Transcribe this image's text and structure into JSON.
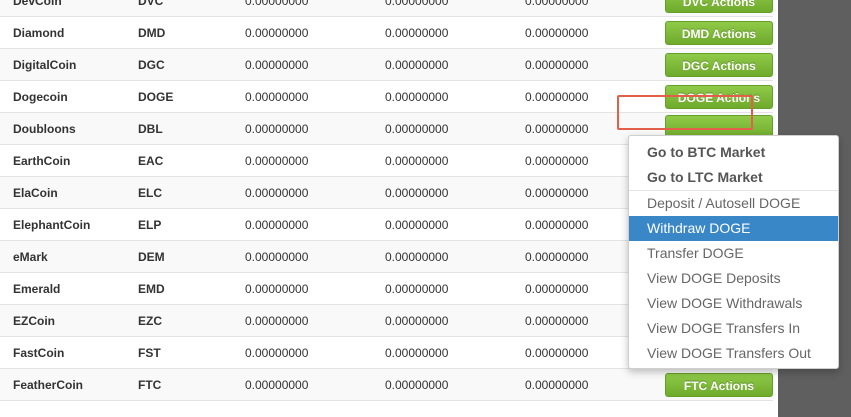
{
  "rows": [
    {
      "name": "DevCoin",
      "code": "DVC",
      "v1": "0.00000000",
      "v2": "0.00000000",
      "v3": "0.00000000",
      "action": "DVC Actions"
    },
    {
      "name": "Diamond",
      "code": "DMD",
      "v1": "0.00000000",
      "v2": "0.00000000",
      "v3": "0.00000000",
      "action": "DMD Actions"
    },
    {
      "name": "DigitalCoin",
      "code": "DGC",
      "v1": "0.00000000",
      "v2": "0.00000000",
      "v3": "0.00000000",
      "action": "DGC Actions"
    },
    {
      "name": "Dogecoin",
      "code": "DOGE",
      "v1": "0.00000000",
      "v2": "0.00000000",
      "v3": "0.00000000",
      "action": "DOGE Actions"
    },
    {
      "name": "Doubloons",
      "code": "DBL",
      "v1": "0.00000000",
      "v2": "0.00000000",
      "v3": "0.00000000",
      "action": ""
    },
    {
      "name": "EarthCoin",
      "code": "EAC",
      "v1": "0.00000000",
      "v2": "0.00000000",
      "v3": "0.00000000",
      "action": ""
    },
    {
      "name": "ElaCoin",
      "code": "ELC",
      "v1": "0.00000000",
      "v2": "0.00000000",
      "v3": "0.00000000",
      "action": ""
    },
    {
      "name": "ElephantCoin",
      "code": "ELP",
      "v1": "0.00000000",
      "v2": "0.00000000",
      "v3": "0.00000000",
      "action": ""
    },
    {
      "name": "eMark",
      "code": "DEM",
      "v1": "0.00000000",
      "v2": "0.00000000",
      "v3": "0.00000000",
      "action": ""
    },
    {
      "name": "Emerald",
      "code": "EMD",
      "v1": "0.00000000",
      "v2": "0.00000000",
      "v3": "0.00000000",
      "action": ""
    },
    {
      "name": "EZCoin",
      "code": "EZC",
      "v1": "0.00000000",
      "v2": "0.00000000",
      "v3": "0.00000000",
      "action": ""
    },
    {
      "name": "FastCoin",
      "code": "FST",
      "v1": "0.00000000",
      "v2": "0.00000000",
      "v3": "0.00000000",
      "action": ""
    },
    {
      "name": "FeatherCoin",
      "code": "FTC",
      "v1": "0.00000000",
      "v2": "0.00000000",
      "v3": "0.00000000",
      "action": "FTC Actions"
    }
  ],
  "dropdown": {
    "items": [
      {
        "label": "Go to BTC Market",
        "style": "strong"
      },
      {
        "label": "Go to LTC Market",
        "style": "strong"
      },
      {
        "label": "Deposit / Autosell DOGE",
        "style": "normal"
      },
      {
        "label": "Withdraw DOGE",
        "style": "active"
      },
      {
        "label": "Transfer DOGE",
        "style": "normal"
      },
      {
        "label": "View DOGE Deposits",
        "style": "normal"
      },
      {
        "label": "View DOGE Withdrawals",
        "style": "normal"
      },
      {
        "label": "View DOGE Transfers In",
        "style": "normal"
      },
      {
        "label": "View DOGE Transfers Out",
        "style": "normal"
      }
    ]
  },
  "colors": {
    "button_green": "#7ab93a",
    "highlight_red": "#e2604a",
    "menu_active": "#3a87c8",
    "side_panel": "#5f5f5f"
  }
}
